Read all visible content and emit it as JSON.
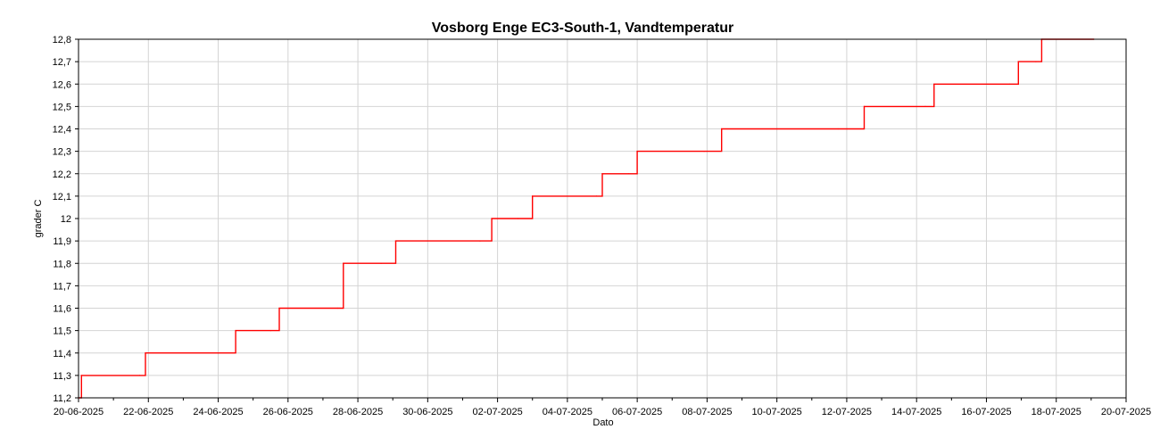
{
  "chart_data": {
    "type": "line",
    "title": "Vosborg Enge EC3-South-1, Vandtemperatur",
    "xlabel": "Dato",
    "ylabel": "grader C",
    "x_ticks": [
      "20-06-2025",
      "22-06-2025",
      "24-06-2025",
      "26-06-2025",
      "28-06-2025",
      "30-06-2025",
      "02-07-2025",
      "04-07-2025",
      "06-07-2025",
      "08-07-2025",
      "10-07-2025",
      "12-07-2025",
      "14-07-2025",
      "16-07-2025",
      "18-07-2025",
      "20-07-2025"
    ],
    "y_ticks": [
      "11,2",
      "11,3",
      "11,4",
      "11,5",
      "11,6",
      "11,7",
      "11,8",
      "11,9",
      "12",
      "12,1",
      "12,2",
      "12,3",
      "12,4",
      "12,5",
      "12,6",
      "12,7",
      "12,8"
    ],
    "xlim": [
      "2025-06-20",
      "2025-07-20"
    ],
    "ylim": [
      11.2,
      12.8
    ],
    "grid": true,
    "line_color": "#ff0000",
    "series": [
      {
        "points": [
          [
            "2025-06-20",
            11.2
          ],
          [
            "2025-06-20T02:00",
            11.3
          ],
          [
            "2025-06-21T18:00",
            11.3
          ],
          [
            "2025-06-21T22:00",
            11.4
          ],
          [
            "2025-06-24T00:00",
            11.4
          ],
          [
            "2025-06-24T12:00",
            11.5
          ],
          [
            "2025-06-25T12:00",
            11.5
          ],
          [
            "2025-06-25T18:00",
            11.6
          ],
          [
            "2025-06-27T10:00",
            11.6
          ],
          [
            "2025-06-27T14:00",
            11.8
          ],
          [
            "2025-06-28T16:00",
            11.8
          ],
          [
            "2025-06-29T02:00",
            11.9
          ],
          [
            "2025-07-01T12:00",
            11.9
          ],
          [
            "2025-07-01T20:00",
            12.0
          ],
          [
            "2025-07-02T14:00",
            12.0
          ],
          [
            "2025-07-03T00:00",
            12.1
          ],
          [
            "2025-07-04T20:00",
            12.1
          ],
          [
            "2025-07-05T00:00",
            12.2
          ],
          [
            "2025-07-05T18:00",
            12.2
          ],
          [
            "2025-07-06T00:00",
            12.3
          ],
          [
            "2025-07-07T22:00",
            12.3
          ],
          [
            "2025-07-08T10:00",
            12.4
          ],
          [
            "2025-07-11T18:00",
            12.4
          ],
          [
            "2025-07-12T12:00",
            12.5
          ],
          [
            "2025-07-14T06:00",
            12.5
          ],
          [
            "2025-07-14T12:00",
            12.6
          ],
          [
            "2025-07-16T16:00",
            12.6
          ],
          [
            "2025-07-16T22:00",
            12.7
          ],
          [
            "2025-07-17T10:00",
            12.7
          ],
          [
            "2025-07-17T14:00",
            12.8
          ],
          [
            "2025-07-19T02:00",
            12.8
          ]
        ]
      }
    ]
  }
}
